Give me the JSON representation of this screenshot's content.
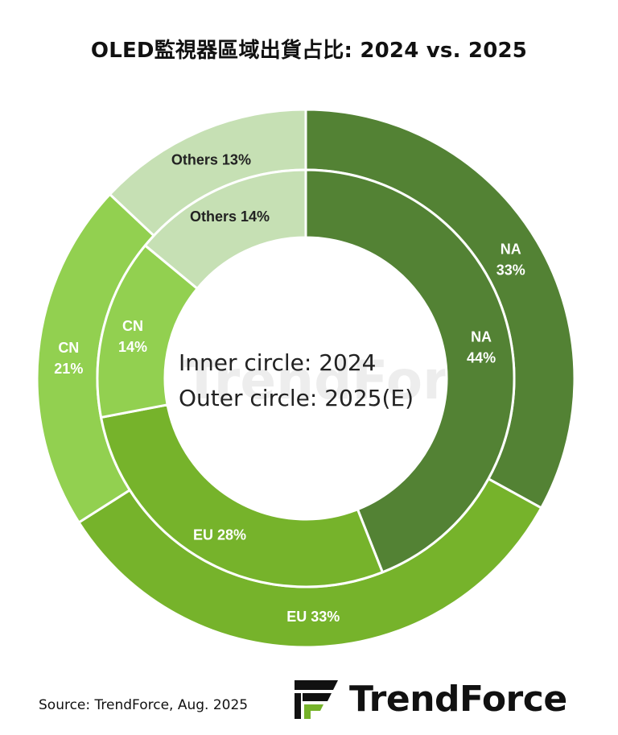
{
  "title": "OLED監視器區域出貨占比: 2024 vs. 2025",
  "center_text": {
    "line1": "Inner circle: 2024",
    "line2": "Outer circle: 2025(E)"
  },
  "source": "Source: TrendForce, Aug. 2025",
  "logo": {
    "text": "TrendForce",
    "icon": "trendforce-logo-icon"
  },
  "watermark_text": "TrendForce",
  "colors": {
    "NA": "#538234",
    "EU": "#76b32b",
    "CN": "#92d050",
    "Others": "#c6e0b4",
    "label": "#ffffff",
    "label_others": "#222222"
  },
  "chart_data": {
    "type": "pie",
    "variant": "nested-donut",
    "categories": [
      "NA",
      "EU",
      "CN",
      "Others"
    ],
    "series": [
      {
        "name": "2024",
        "ring": "inner",
        "values": [
          44,
          28,
          14,
          14
        ],
        "labels": [
          "NA 44%",
          "EU 28%",
          "CN 14%",
          "Others 14%"
        ]
      },
      {
        "name": "2025(E)",
        "ring": "outer",
        "values": [
          33,
          33,
          21,
          13
        ],
        "labels": [
          "NA 33%",
          "EU 33%",
          "CN 21%",
          "Others 13%"
        ]
      }
    ]
  }
}
